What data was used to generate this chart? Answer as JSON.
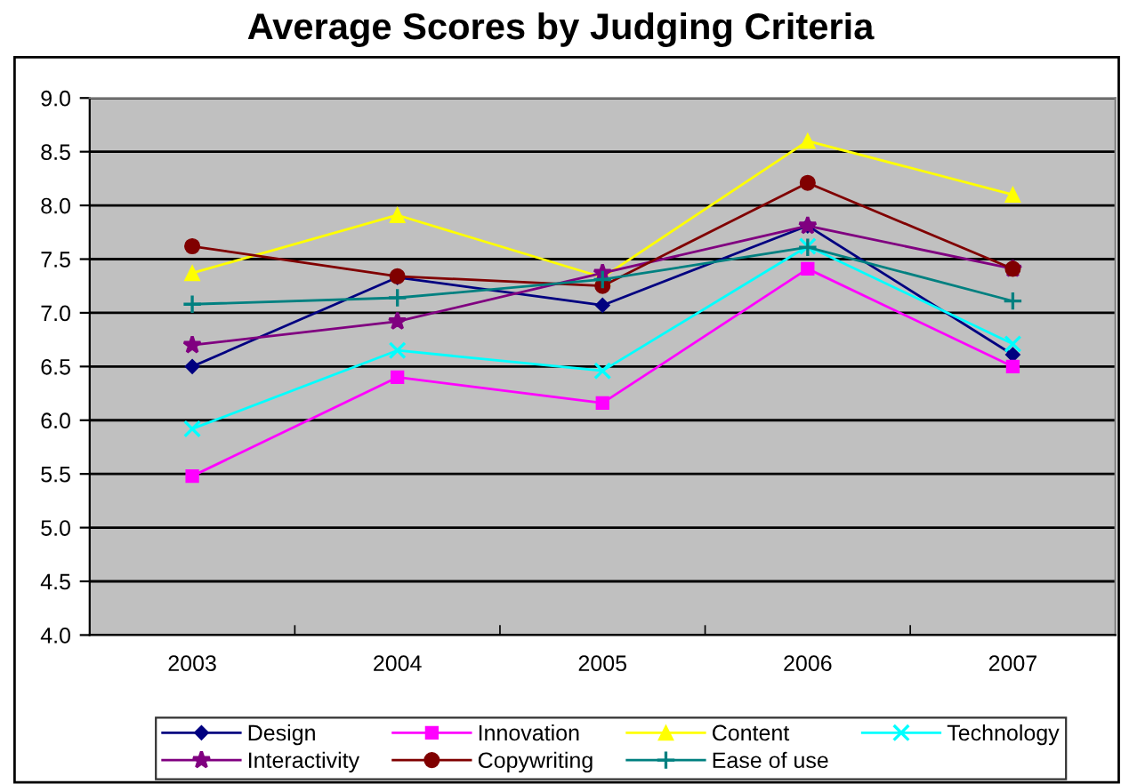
{
  "chart_data": {
    "type": "line",
    "title": "Average Scores by Judging Criteria",
    "categories": [
      "2003",
      "2004",
      "2005",
      "2006",
      "2007"
    ],
    "series": [
      {
        "name": "Design",
        "color": "#000080",
        "marker": "diamond",
        "values": [
          6.5,
          7.33,
          7.07,
          7.81,
          6.61
        ]
      },
      {
        "name": "Innovation",
        "color": "#ff00ff",
        "marker": "square",
        "values": [
          5.48,
          6.4,
          6.16,
          7.41,
          6.5
        ]
      },
      {
        "name": "Content",
        "color": "#ffff00",
        "marker": "triangle",
        "values": [
          7.37,
          7.91,
          7.33,
          8.6,
          8.1
        ]
      },
      {
        "name": "Technology",
        "color": "#00ffff",
        "marker": "cross",
        "values": [
          5.92,
          6.65,
          6.46,
          7.62,
          6.71
        ]
      },
      {
        "name": "Interactivity",
        "color": "#800080",
        "marker": "star",
        "values": [
          6.7,
          6.92,
          7.37,
          7.81,
          7.41
        ]
      },
      {
        "name": "Copywriting",
        "color": "#800000",
        "marker": "circle",
        "values": [
          7.62,
          7.34,
          7.25,
          8.21,
          7.41
        ]
      },
      {
        "name": "Ease of use",
        "color": "#008080",
        "marker": "plus",
        "values": [
          7.08,
          7.14,
          7.31,
          7.61,
          7.11
        ]
      }
    ],
    "ylim": [
      4.0,
      9.0
    ],
    "yticks": [
      {
        "value": 4.0,
        "label": "4.0"
      },
      {
        "value": 4.5,
        "label": "4.5"
      },
      {
        "value": 5.0,
        "label": "5.0"
      },
      {
        "value": 5.5,
        "label": "5.5"
      },
      {
        "value": 6.0,
        "label": "6.0"
      },
      {
        "value": 6.5,
        "label": "6.5"
      },
      {
        "value": 7.0,
        "label": "7.0"
      },
      {
        "value": 7.5,
        "label": "7.5"
      },
      {
        "value": 8.0,
        "label": "8.0"
      },
      {
        "value": 8.5,
        "label": "8.5"
      },
      {
        "value": 9.0,
        "label": "9.0"
      }
    ],
    "grid": "y",
    "legend": "bottom"
  }
}
